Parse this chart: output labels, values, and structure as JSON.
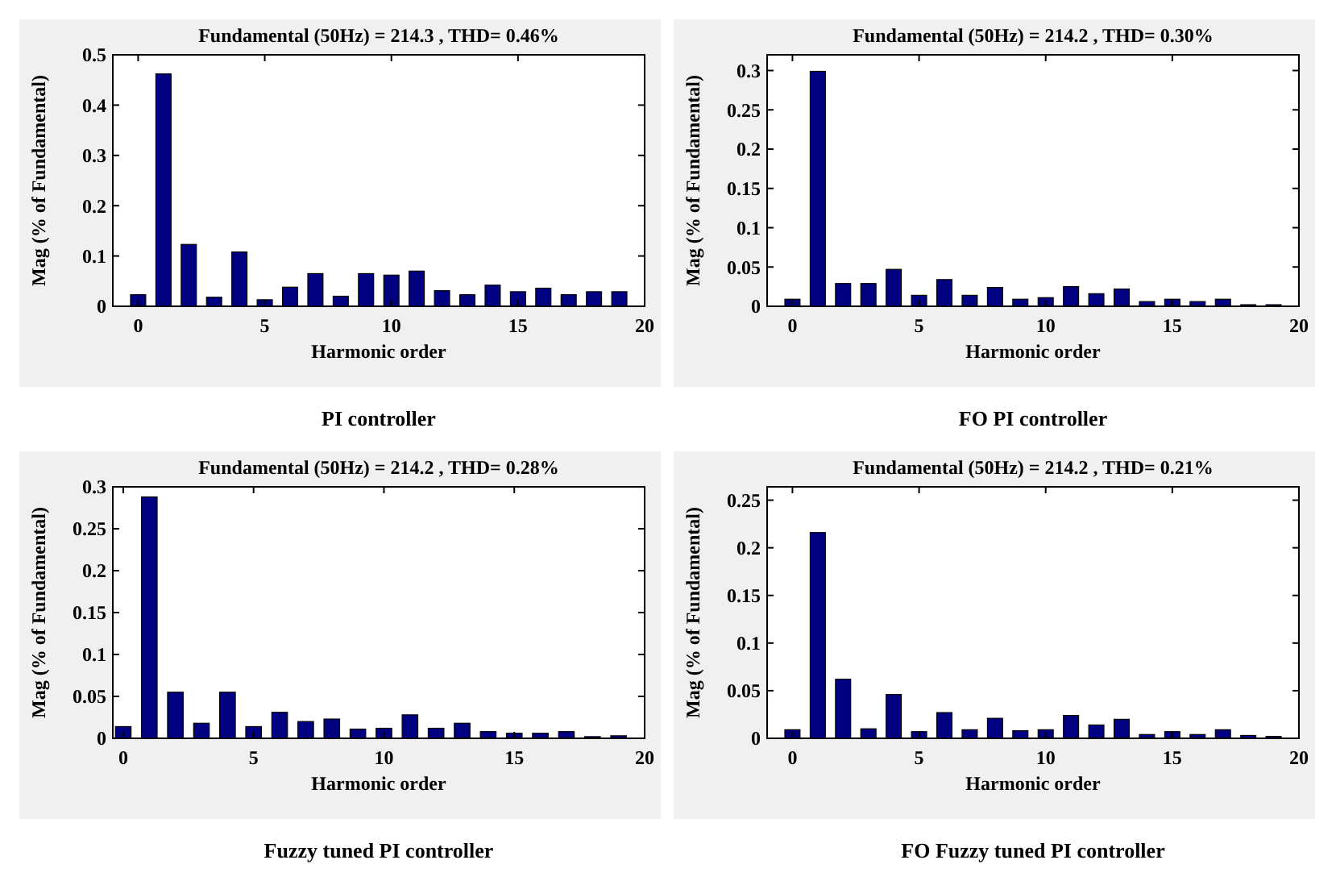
{
  "chart_data": [
    {
      "type": "bar",
      "title": "Fundamental (50Hz) = 214.3 , THD= 0.46%",
      "xlabel": "Harmonic order",
      "ylabel": "Mag (% of Fundamental)",
      "annotations": [
        "PI controller"
      ],
      "x": [
        0,
        1,
        2,
        3,
        4,
        5,
        6,
        7,
        8,
        9,
        10,
        11,
        12,
        13,
        14,
        15,
        16,
        17,
        18,
        19
      ],
      "values": [
        0.023,
        0.462,
        0.123,
        0.018,
        0.108,
        0.013,
        0.038,
        0.065,
        0.02,
        0.065,
        0.062,
        0.07,
        0.031,
        0.023,
        0.042,
        0.029,
        0.036,
        0.023,
        0.029,
        0.029
      ],
      "color": "#000080",
      "xlim": [
        -1,
        20
      ],
      "xticks": [
        0,
        5,
        10,
        15,
        20
      ],
      "ylim": [
        0,
        0.5
      ],
      "yticks": [
        0,
        0.1,
        0.2,
        0.3,
        0.4,
        0.5
      ]
    },
    {
      "type": "bar",
      "title": "Fundamental (50Hz) = 214.2 , THD= 0.30%",
      "xlabel": "Harmonic order",
      "ylabel": "Mag (% of Fundamental)",
      "annotations": [
        "FO PI controller"
      ],
      "x": [
        0,
        1,
        2,
        3,
        4,
        5,
        6,
        7,
        8,
        9,
        10,
        11,
        12,
        13,
        14,
        15,
        16,
        17,
        18,
        19
      ],
      "values": [
        0.009,
        0.299,
        0.029,
        0.029,
        0.047,
        0.014,
        0.034,
        0.014,
        0.024,
        0.009,
        0.011,
        0.025,
        0.016,
        0.022,
        0.006,
        0.009,
        0.006,
        0.009,
        0.002,
        0.002
      ],
      "color": "#000080",
      "xlim": [
        -1,
        20
      ],
      "xticks": [
        0,
        5,
        10,
        15,
        20
      ],
      "ylim": [
        0,
        0.32
      ],
      "yticks": [
        0,
        0.05,
        0.1,
        0.15,
        0.2,
        0.25,
        0.3
      ]
    },
    {
      "type": "bar",
      "title": "Fundamental (50Hz) = 214.2 , THD= 0.28%",
      "xlabel": "Harmonic order",
      "ylabel": "Mag (% of Fundamental)",
      "annotations": [
        "Fuzzy tuned PI controller"
      ],
      "x": [
        0,
        1,
        2,
        3,
        4,
        5,
        6,
        7,
        8,
        9,
        10,
        11,
        12,
        13,
        14,
        15,
        16,
        17,
        18,
        19
      ],
      "values": [
        0.014,
        0.288,
        0.055,
        0.018,
        0.055,
        0.014,
        0.031,
        0.02,
        0.023,
        0.011,
        0.012,
        0.028,
        0.012,
        0.018,
        0.008,
        0.006,
        0.006,
        0.008,
        0.002,
        0.003
      ],
      "color": "#000080",
      "xlim": [
        -0.4,
        20
      ],
      "xticks": [
        0,
        5,
        10,
        15,
        20
      ],
      "ylim": [
        0,
        0.3
      ],
      "yticks": [
        0,
        0.05,
        0.1,
        0.15,
        0.2,
        0.25,
        0.3
      ]
    },
    {
      "type": "bar",
      "title": "Fundamental (50Hz) = 214.2 , THD= 0.21%",
      "xlabel": "Harmonic order",
      "ylabel": "Mag (% of Fundamental)",
      "annotations": [
        "FO Fuzzy tuned PI controller"
      ],
      "x": [
        0,
        1,
        2,
        3,
        4,
        5,
        6,
        7,
        8,
        9,
        10,
        11,
        12,
        13,
        14,
        15,
        16,
        17,
        18,
        19
      ],
      "values": [
        0.009,
        0.216,
        0.062,
        0.01,
        0.046,
        0.007,
        0.027,
        0.009,
        0.021,
        0.008,
        0.009,
        0.024,
        0.014,
        0.02,
        0.004,
        0.007,
        0.004,
        0.009,
        0.003,
        0.002
      ],
      "color": "#000080",
      "xlim": [
        -1,
        20
      ],
      "xticks": [
        0,
        5,
        10,
        15,
        20
      ],
      "ylim": [
        0,
        0.264
      ],
      "yticks": [
        0,
        0.05,
        0.1,
        0.15,
        0.2,
        0.25
      ]
    }
  ]
}
